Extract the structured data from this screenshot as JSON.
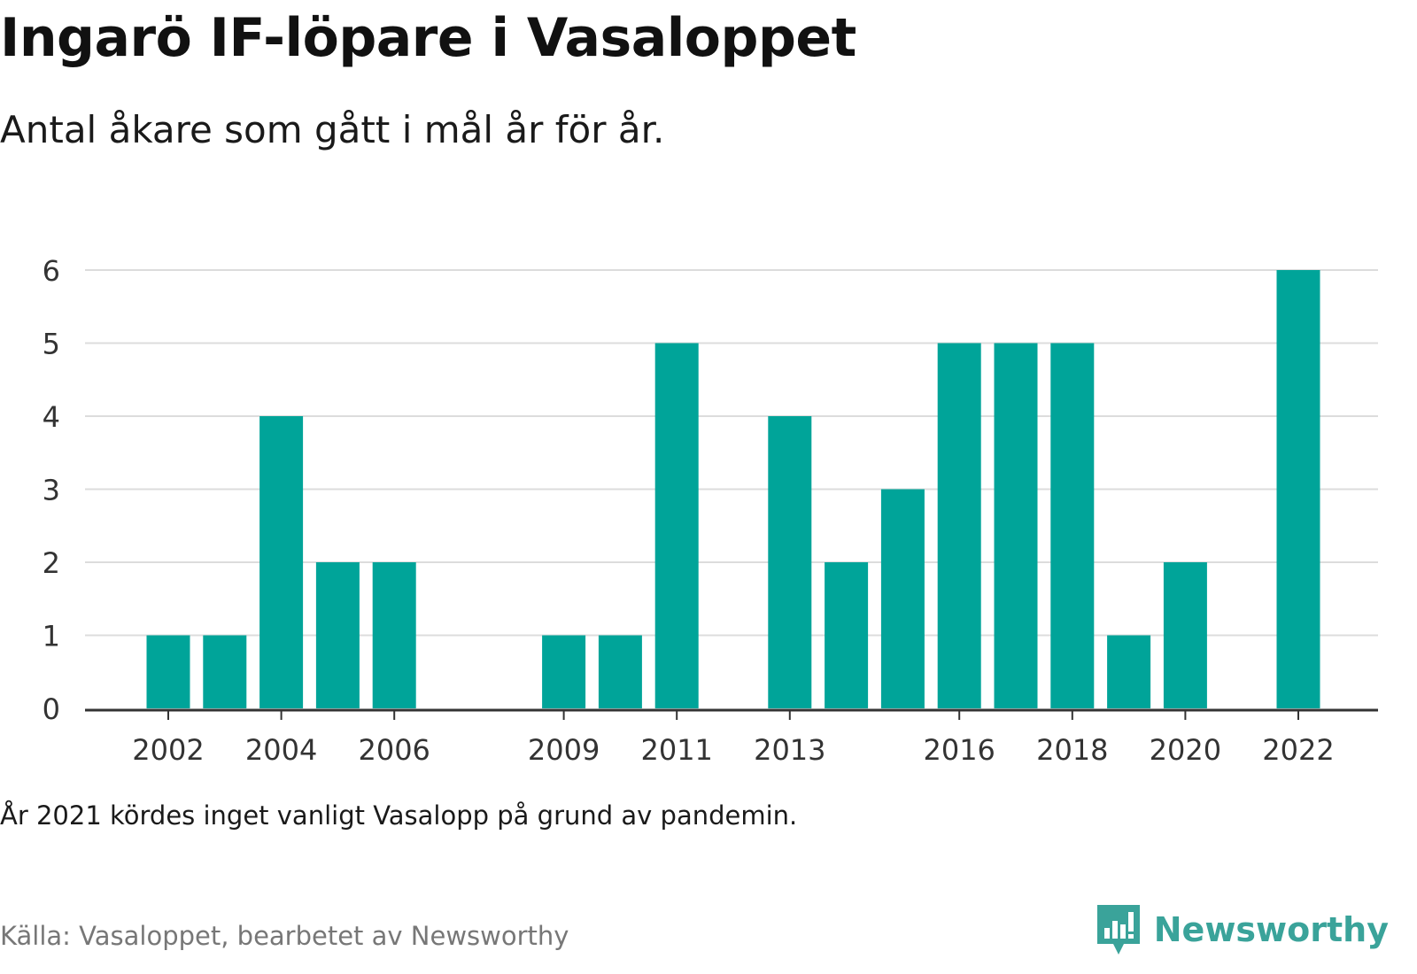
{
  "header": {
    "title": "Ingarö IF-löpare i Vasaloppet",
    "subtitle": "Antal åkare som gått i mål år för år."
  },
  "footer": {
    "note": "År 2021 kördes inget vanligt Vasalopp på grund av pandemin.",
    "source": "Källa: Vasaloppet, bearbetet av Newsworthy",
    "brand": "Newsworthy"
  },
  "colors": {
    "bar": "#00a499",
    "grid": "#dcdcdc",
    "axis": "#333333",
    "brand": "#3aa39a"
  },
  "icons": {
    "brand_logo": "bar-chart-speech-bubble-icon"
  },
  "chart_data": {
    "type": "bar",
    "title": "Ingarö IF-löpare i Vasaloppet",
    "subtitle": "Antal åkare som gått i mål år för år.",
    "xlabel": "",
    "ylabel": "",
    "categories": [
      "2002",
      "2003",
      "2004",
      "2005",
      "2006",
      "2007",
      "2008",
      "2009",
      "2010",
      "2011",
      "2012",
      "2013",
      "2014",
      "2015",
      "2016",
      "2017",
      "2018",
      "2019",
      "2020",
      "2021",
      "2022"
    ],
    "values": [
      1,
      1,
      4,
      2,
      2,
      0,
      0,
      1,
      1,
      5,
      0,
      4,
      2,
      3,
      5,
      5,
      5,
      1,
      2,
      0,
      6
    ],
    "tick_labels_x": [
      "2002",
      "2004",
      "2006",
      "2009",
      "2011",
      "2013",
      "2016",
      "2018",
      "2020",
      "2022"
    ],
    "yticks": [
      0,
      1,
      2,
      3,
      4,
      5,
      6
    ],
    "ylim": [
      0,
      6
    ],
    "grid": true,
    "legend": "none"
  }
}
